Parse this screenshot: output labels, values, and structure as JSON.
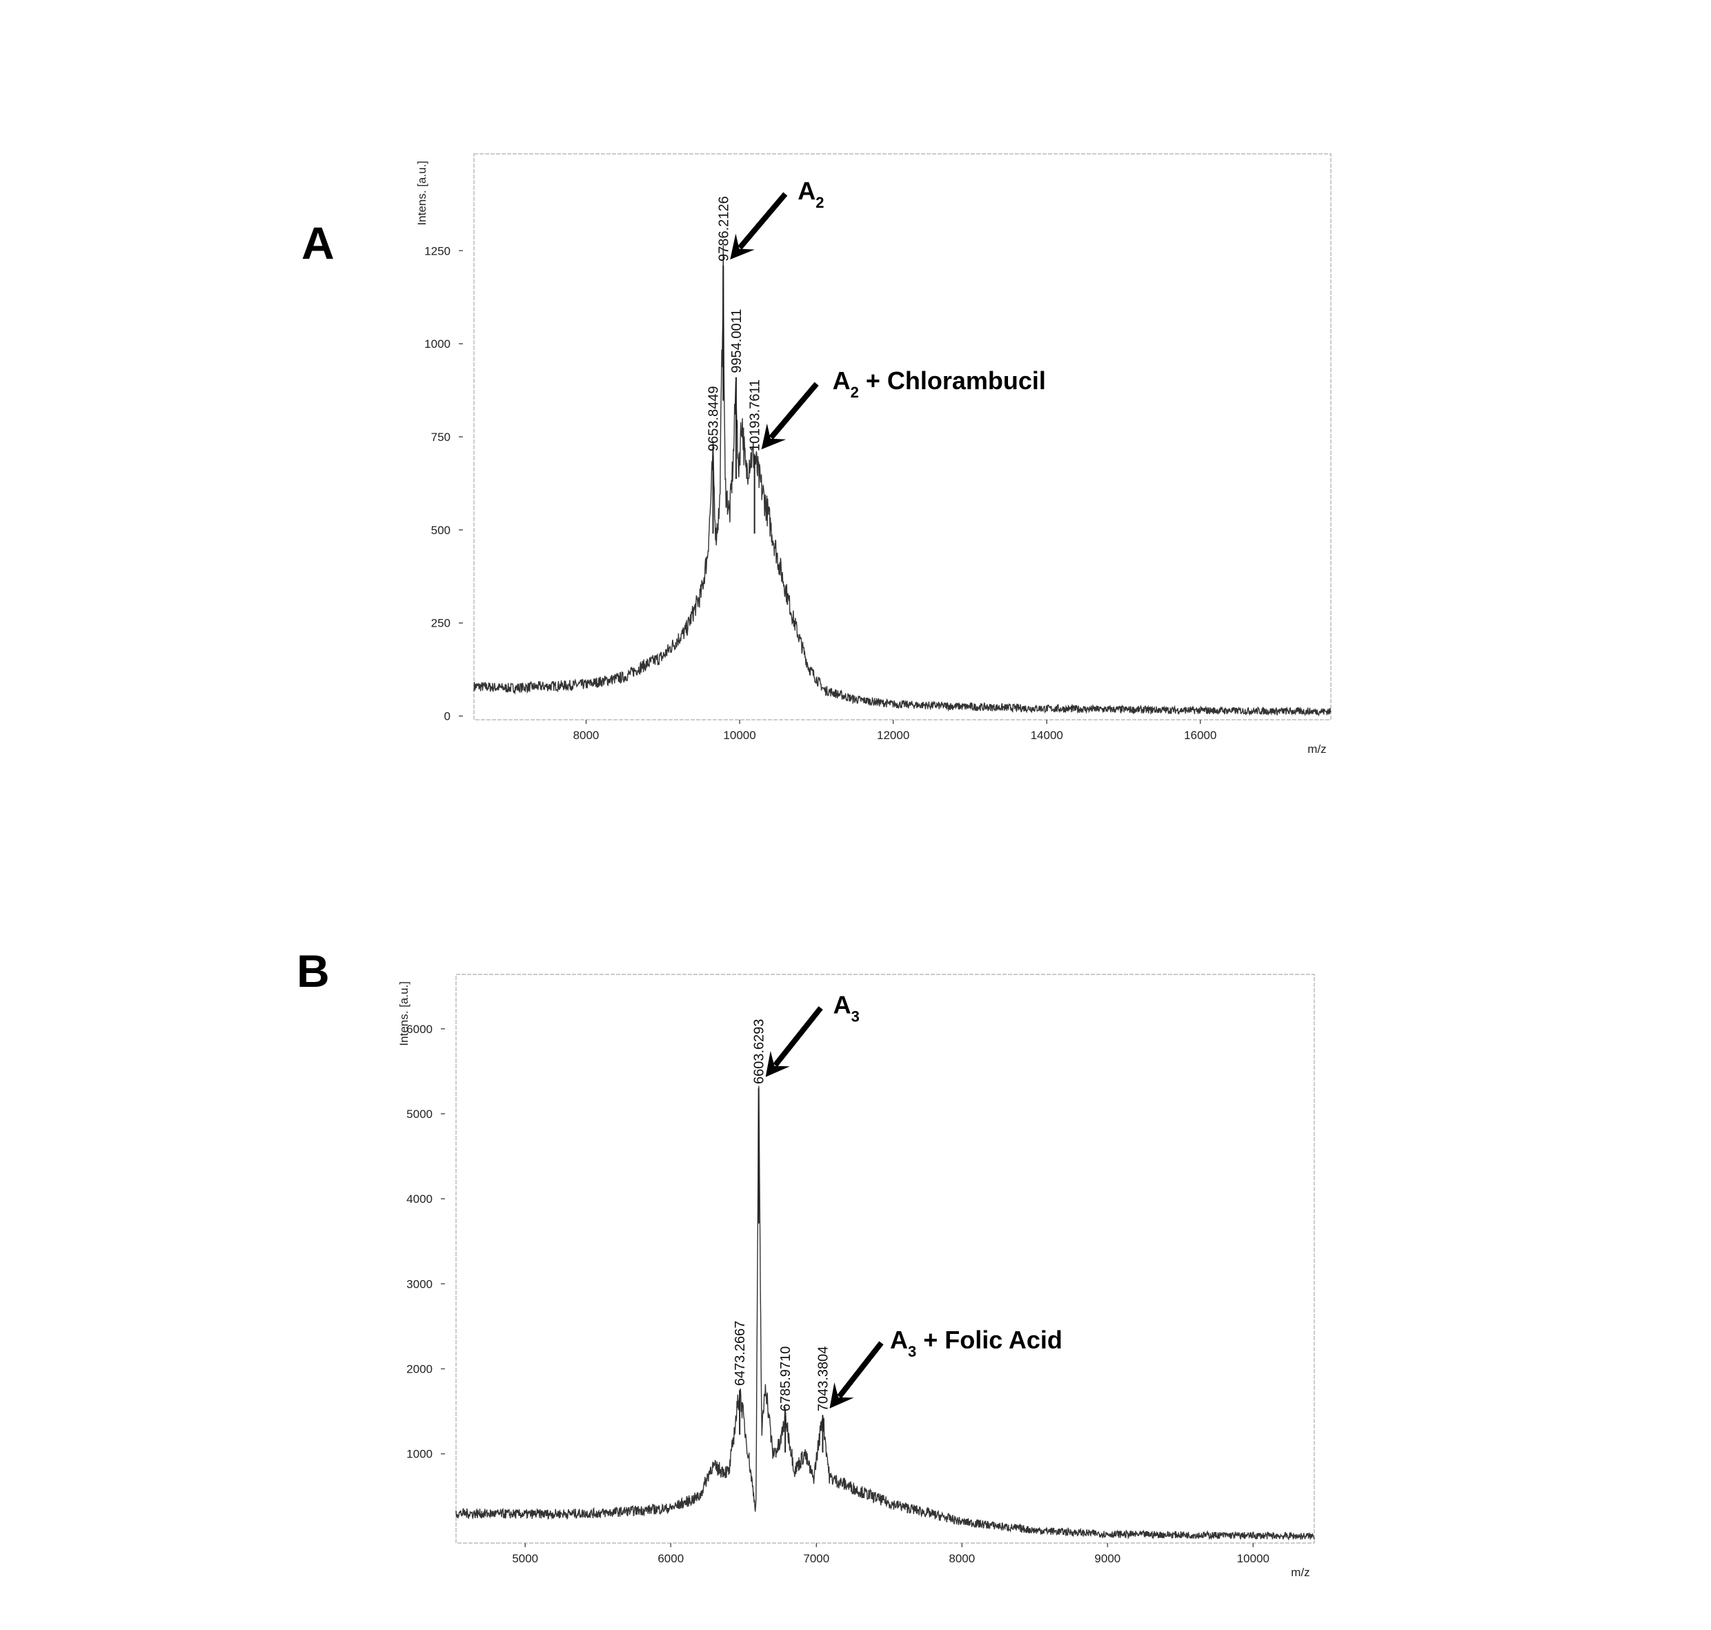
{
  "chart_data": [
    {
      "panel": "A",
      "type": "line",
      "ylabel": "Intens. [a.u.]",
      "xlabel": "m/z",
      "xlim": [
        6540,
        17700
      ],
      "ylim": [
        -10,
        1510
      ],
      "xticks": [
        8000,
        10000,
        12000,
        14000,
        16000
      ],
      "yticks": [
        0,
        250,
        500,
        750,
        1000,
        1250
      ],
      "grid": false,
      "spectrum": [
        [
          6540,
          80
        ],
        [
          7000,
          75
        ],
        [
          7500,
          80
        ],
        [
          8000,
          85
        ],
        [
          8500,
          105
        ],
        [
          8700,
          130
        ],
        [
          9000,
          160
        ],
        [
          9300,
          230
        ],
        [
          9500,
          330
        ],
        [
          9580,
          430
        ],
        [
          9620,
          560
        ],
        [
          9653,
          700
        ],
        [
          9690,
          480
        ],
        [
          9740,
          560
        ],
        [
          9786,
          1200
        ],
        [
          9810,
          620
        ],
        [
          9870,
          540
        ],
        [
          9920,
          700
        ],
        [
          9954,
          910
        ],
        [
          9980,
          650
        ],
        [
          10030,
          800
        ],
        [
          10080,
          650
        ],
        [
          10130,
          690
        ],
        [
          10193,
          700
        ],
        [
          10250,
          640
        ],
        [
          10350,
          560
        ],
        [
          10500,
          420
        ],
        [
          10700,
          260
        ],
        [
          10900,
          130
        ],
        [
          11100,
          70
        ],
        [
          11500,
          45
        ],
        [
          12000,
          32
        ],
        [
          13000,
          25
        ],
        [
          14000,
          20
        ],
        [
          16000,
          15
        ],
        [
          17700,
          12
        ]
      ],
      "peaks": [
        {
          "mz": 9653.8449,
          "intensity": 700,
          "label": "9653.8449"
        },
        {
          "mz": 9786.2126,
          "intensity": 1210,
          "label": "9786.2126"
        },
        {
          "mz": 9954.0011,
          "intensity": 910,
          "label": "9954.0011"
        },
        {
          "mz": 10193.7611,
          "intensity": 700,
          "label": "10193.7611"
        }
      ],
      "annotations": [
        {
          "main": "A",
          "sub": "2",
          "rest": "",
          "target_mz": 9786.2126,
          "target_intensity": 1230
        },
        {
          "main": "A",
          "sub": "2",
          "rest": " + Chlorambucil",
          "target_mz": 10193.7611,
          "target_intensity": 720
        }
      ]
    },
    {
      "panel": "B",
      "type": "line",
      "ylabel": "Intens. [a.u.]",
      "xlabel": "m/z",
      "xlim": [
        4525,
        10420
      ],
      "ylim": [
        -50,
        6640
      ],
      "xticks": [
        5000,
        6000,
        7000,
        8000,
        9000,
        10000
      ],
      "yticks": [
        1000,
        2000,
        3000,
        4000,
        5000,
        6000
      ],
      "grid": false,
      "spectrum": [
        [
          4525,
          300
        ],
        [
          5000,
          290
        ],
        [
          5500,
          300
        ],
        [
          6000,
          360
        ],
        [
          6200,
          500
        ],
        [
          6280,
          850
        ],
        [
          6400,
          780
        ],
        [
          6473,
          1750
        ],
        [
          6540,
          900
        ],
        [
          6585,
          320
        ],
        [
          6603,
          5300
        ],
        [
          6625,
          1200
        ],
        [
          6650,
          1850
        ],
        [
          6700,
          1000
        ],
        [
          6750,
          1100
        ],
        [
          6786,
          1450
        ],
        [
          6850,
          800
        ],
        [
          6920,
          1000
        ],
        [
          6980,
          700
        ],
        [
          7043,
          1450
        ],
        [
          7090,
          720
        ],
        [
          7300,
          560
        ],
        [
          7500,
          420
        ],
        [
          8000,
          200
        ],
        [
          8500,
          100
        ],
        [
          9000,
          55
        ],
        [
          10420,
          30
        ]
      ],
      "peaks": [
        {
          "mz": 6473.2667,
          "intensity": 1750,
          "label": "6473.2667"
        },
        {
          "mz": 6603.6293,
          "intensity": 5300,
          "label": "6603.6293"
        },
        {
          "mz": 6785.971,
          "intensity": 1450,
          "label": "6785.9710"
        },
        {
          "mz": 7043.3804,
          "intensity": 1450,
          "label": "7043.3804"
        }
      ],
      "annotations": [
        {
          "main": "A",
          "sub": "3",
          "rest": "",
          "target_mz": 6603.6293,
          "target_intensity": 5450
        },
        {
          "main": "A",
          "sub": "3",
          "rest": " + Folic Acid",
          "target_mz": 7043.3804,
          "target_intensity": 1550
        }
      ]
    }
  ]
}
